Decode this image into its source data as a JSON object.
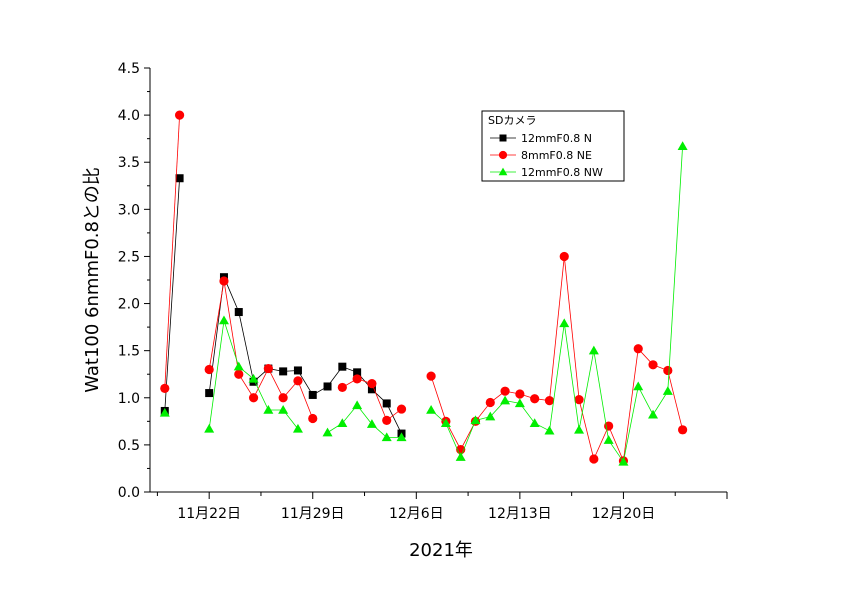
{
  "chart_data": {
    "type": "line",
    "xlabel": "2021年",
    "ylabel": "Wat100 6nmmF0.8との比",
    "ylim": [
      0,
      4.5
    ],
    "yticks": [
      "0.0",
      "0.5",
      "1.0",
      "1.5",
      "2.0",
      "2.5",
      "3.0",
      "3.5",
      "4.0",
      "4.5"
    ],
    "xlim": [
      "2021-11-18",
      "2021-12-27"
    ],
    "xticks": [
      {
        "date": "2021-11-22",
        "label": "11月22日"
      },
      {
        "date": "2021-11-29",
        "label": "11月29日"
      },
      {
        "date": "2021-12-06",
        "label": "12月6日"
      },
      {
        "date": "2021-12-13",
        "label": "12月13日"
      },
      {
        "date": "2021-12-20",
        "label": "12月20日"
      }
    ],
    "legend": {
      "title": "SDカメラ",
      "position": "top-right"
    },
    "series": [
      {
        "name": "12mmF0.8 N",
        "color": "#000000",
        "marker": "square",
        "points": [
          [
            "2021-11-19",
            0.86
          ],
          [
            "2021-11-20",
            3.33
          ],
          null,
          [
            "2021-11-22",
            1.05
          ],
          [
            "2021-11-23",
            2.28
          ],
          [
            "2021-11-24",
            1.91
          ],
          [
            "2021-11-25",
            1.17
          ],
          [
            "2021-11-26",
            1.31
          ],
          [
            "2021-11-27",
            1.28
          ],
          [
            "2021-11-28",
            1.29
          ],
          [
            "2021-11-29",
            1.03
          ],
          [
            "2021-11-30",
            1.12
          ],
          [
            "2021-12-01",
            1.33
          ],
          [
            "2021-12-02",
            1.27
          ],
          [
            "2021-12-03",
            1.09
          ],
          [
            "2021-12-04",
            0.94
          ],
          [
            "2021-12-05",
            0.62
          ]
        ]
      },
      {
        "name": "8mmF0.8 NE",
        "color": "#ff0000",
        "marker": "circle",
        "points": [
          [
            "2021-11-19",
            1.1
          ],
          [
            "2021-11-20",
            4.0
          ],
          null,
          [
            "2021-11-22",
            1.3
          ],
          [
            "2021-11-23",
            2.24
          ],
          [
            "2021-11-24",
            1.25
          ],
          [
            "2021-11-25",
            1.0
          ],
          [
            "2021-11-26",
            1.31
          ],
          [
            "2021-11-27",
            1.0
          ],
          [
            "2021-11-28",
            1.18
          ],
          [
            "2021-11-29",
            0.78
          ],
          null,
          [
            "2021-12-01",
            1.11
          ],
          [
            "2021-12-02",
            1.2
          ],
          [
            "2021-12-03",
            1.15
          ],
          [
            "2021-12-04",
            0.76
          ],
          [
            "2021-12-05",
            0.88
          ],
          null,
          [
            "2021-12-07",
            1.23
          ],
          [
            "2021-12-08",
            0.75
          ],
          [
            "2021-12-09",
            0.45
          ],
          [
            "2021-12-10",
            0.75
          ],
          [
            "2021-12-11",
            0.95
          ],
          [
            "2021-12-12",
            1.07
          ],
          [
            "2021-12-13",
            1.04
          ],
          [
            "2021-12-14",
            0.99
          ],
          [
            "2021-12-15",
            0.97
          ],
          [
            "2021-12-16",
            2.5
          ],
          [
            "2021-12-17",
            0.98
          ],
          [
            "2021-12-18",
            0.35
          ],
          [
            "2021-12-19",
            0.7
          ],
          [
            "2021-12-20",
            0.33
          ],
          [
            "2021-12-21",
            1.52
          ],
          [
            "2021-12-22",
            1.35
          ],
          [
            "2021-12-23",
            1.29
          ],
          [
            "2021-12-24",
            0.66
          ]
        ]
      },
      {
        "name": "12mmF0.8 NW",
        "color": "#00ee00",
        "marker": "triangle",
        "points": [
          [
            "2021-11-19",
            0.84
          ],
          null,
          [
            "2021-11-22",
            0.67
          ],
          [
            "2021-11-23",
            1.82
          ],
          [
            "2021-11-24",
            1.33
          ],
          [
            "2021-11-25",
            1.2
          ],
          [
            "2021-11-26",
            0.87
          ],
          [
            "2021-11-27",
            0.87
          ],
          [
            "2021-11-28",
            0.67
          ],
          null,
          [
            "2021-11-30",
            0.63
          ],
          [
            "2021-12-01",
            0.73
          ],
          [
            "2021-12-02",
            0.92
          ],
          [
            "2021-12-03",
            0.72
          ],
          [
            "2021-12-04",
            0.58
          ],
          [
            "2021-12-05",
            0.58
          ],
          null,
          [
            "2021-12-07",
            0.87
          ],
          [
            "2021-12-08",
            0.73
          ],
          [
            "2021-12-09",
            0.37
          ],
          [
            "2021-12-10",
            0.76
          ],
          [
            "2021-12-11",
            0.8
          ],
          [
            "2021-12-12",
            0.97
          ],
          [
            "2021-12-13",
            0.94
          ],
          [
            "2021-12-14",
            0.73
          ],
          [
            "2021-12-15",
            0.65
          ],
          [
            "2021-12-16",
            1.79
          ],
          [
            "2021-12-17",
            0.66
          ],
          [
            "2021-12-18",
            1.5
          ],
          [
            "2021-12-19",
            0.55
          ],
          [
            "2021-12-20",
            0.32
          ],
          [
            "2021-12-21",
            1.12
          ],
          [
            "2021-12-22",
            0.82
          ],
          [
            "2021-12-23",
            1.07
          ],
          [
            "2021-12-24",
            3.67
          ]
        ]
      }
    ]
  }
}
